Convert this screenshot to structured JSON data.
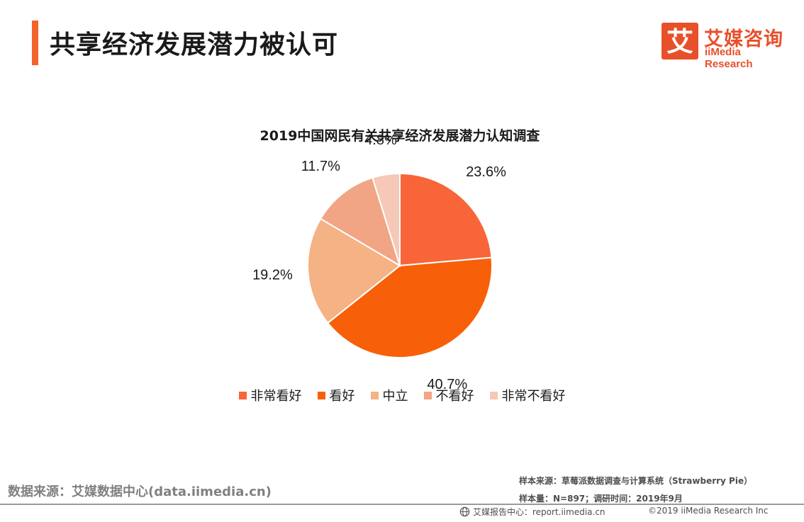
{
  "header": {
    "title": "共享经济发展潜力被认可",
    "logo_cn": "艾媒咨询",
    "logo_en": "iiMedia Research",
    "logo_mark": "艾"
  },
  "colors": {
    "accent": "#f4622b",
    "brand": "#e8502a"
  },
  "chart_data": {
    "type": "pie",
    "title": "2019中国网民有关共享经济发展潜力认知调查",
    "categories": [
      "非常看好",
      "看好",
      "中立",
      "不看好",
      "非常不看好"
    ],
    "values": [
      23.6,
      40.7,
      19.2,
      11.7,
      4.8
    ],
    "labels": [
      "23.6%",
      "40.7%",
      "19.2%",
      "11.7%",
      "4.8%"
    ],
    "colors": [
      "#f76539",
      "#f76009",
      "#f4b285",
      "#f1a585",
      "#f5c8b7"
    ],
    "start_angle": "12 o'clock",
    "direction": "clockwise",
    "legend": "bottom"
  },
  "footer": {
    "source": "数据来源：艾媒数据中心(data.iimedia.cn)",
    "sample_source": "样本来源：草莓派数据调查与计算系统（Strawberry Pie）",
    "sample_size": "样本量：N=897；调研时间：2019年9月",
    "report_center": "艾媒报告中心：report.iimedia.cn",
    "copyright": "©2019  iiMedia Research  Inc"
  }
}
